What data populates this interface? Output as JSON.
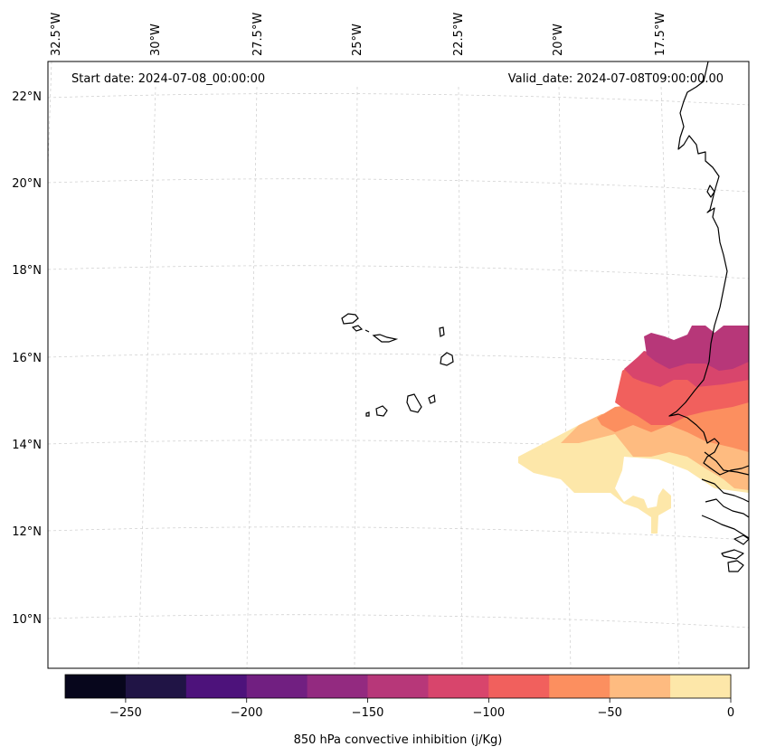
{
  "annotations": {
    "start_date": "Start date: 2024-07-08_00:00:00",
    "valid_date": "Valid_date: 2024-07-08T09:00:00.00"
  },
  "longitude_labels": [
    "32.5°W",
    "30°W",
    "27.5°W",
    "25°W",
    "22.5°W",
    "20°W",
    "17.5°W"
  ],
  "latitude_labels": [
    "22°N",
    "20°N",
    "18°N",
    "16°N",
    "14°N",
    "12°N",
    "10°N"
  ],
  "colorbar": {
    "label": "850 hPa convective inhibition (j/Kg)",
    "tick_labels": [
      "−250",
      "−200",
      "−150",
      "−100",
      "−50",
      "0"
    ],
    "levels": [
      -275,
      -250,
      -225,
      -200,
      -175,
      -150,
      -125,
      -100,
      -75,
      -50,
      -25,
      0
    ],
    "colors": [
      "#07061c",
      "#201445",
      "#4d127b",
      "#711f81",
      "#932a80",
      "#b73779",
      "#d8456c",
      "#f1605d",
      "#fc8f5f",
      "#febb80",
      "#fde7a9"
    ]
  },
  "chart_data": {
    "type": "filled-contour-map",
    "variable": "850 hPa convective inhibition",
    "units": "j/Kg",
    "colormap": "magma",
    "value_range": [
      -275,
      0
    ],
    "lon_range_deg": [
      -33,
      -15.5
    ],
    "lat_range_deg": [
      9,
      22.5
    ],
    "gridlines": true,
    "features": [
      "coastline of West Africa (Mauritania, Senegal, Gambia, Guinea-Bissau)",
      "Cape Verde islands"
    ]
  }
}
